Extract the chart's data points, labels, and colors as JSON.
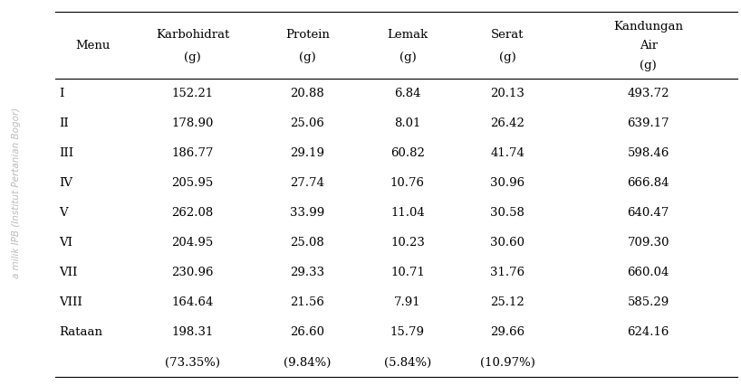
{
  "col_headers_line1": [
    "Menu",
    "Karbohidrat",
    "Protein",
    "Lemak",
    "Serat",
    "Kandungan"
  ],
  "col_headers_line2": [
    "",
    "(g)",
    "(g)",
    "(g)",
    "(g)",
    "Air"
  ],
  "col_headers_line3": [
    "",
    "",
    "",
    "",
    "",
    "(g)"
  ],
  "rows": [
    [
      "I",
      "152.21",
      "20.88",
      "6.84",
      "20.13",
      "493.72"
    ],
    [
      "II",
      "178.90",
      "25.06",
      "8.01",
      "26.42",
      "639.17"
    ],
    [
      "III",
      "186.77",
      "29.19",
      "60.82",
      "41.74",
      "598.46"
    ],
    [
      "IV",
      "205.95",
      "27.74",
      "10.76",
      "30.96",
      "666.84"
    ],
    [
      "V",
      "262.08",
      "33.99",
      "11.04",
      "30.58",
      "640.47"
    ],
    [
      "VI",
      "204.95",
      "25.08",
      "10.23",
      "30.60",
      "709.30"
    ],
    [
      "VII",
      "230.96",
      "29.33",
      "10.71",
      "31.76",
      "660.04"
    ],
    [
      "VIII",
      "164.64",
      "21.56",
      "7.91",
      "25.12",
      "585.29"
    ],
    [
      "Rataan",
      "198.31",
      "26.60",
      "15.79",
      "29.66",
      "624.16"
    ],
    [
      "",
      "(73.35%)",
      "(9.84%)",
      "(5.84%)",
      "(10.97%)",
      ""
    ]
  ],
  "background_color": "#ffffff",
  "text_color": "#000000",
  "font_size": 9.5,
  "watermark_text": "a milik IPB (Institut Pertanian Bogor)",
  "watermark_color": "#bbbbbb"
}
